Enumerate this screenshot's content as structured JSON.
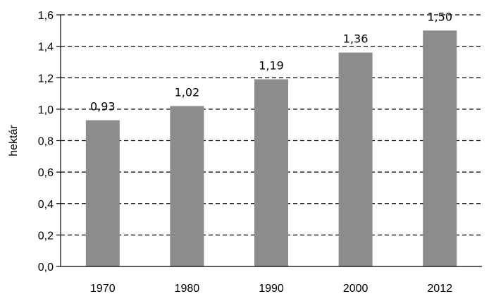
{
  "chart_data": {
    "type": "bar",
    "categories": [
      "1970",
      "1980",
      "1990",
      "2000",
      "2012"
    ],
    "values": [
      0.93,
      1.02,
      1.19,
      1.36,
      1.5
    ],
    "data_labels": [
      "0,93",
      "1,02",
      "1,19",
      "1,36",
      "1,50"
    ],
    "ylabel": "hektár",
    "ylim": [
      0,
      1.6
    ],
    "yticks": [
      0,
      0.2,
      0.4,
      0.6,
      0.8,
      1.0,
      1.2,
      1.4,
      1.6
    ],
    "ytick_labels": [
      "0,0",
      "0,2",
      "0,4",
      "0,6",
      "0,8",
      "1,0",
      "1,2",
      "1,4",
      "1,6"
    ],
    "grid": "horizontal dashed",
    "legend": "none",
    "colors": {
      "bar": "#8c8c8c",
      "grid": "#000000"
    }
  }
}
